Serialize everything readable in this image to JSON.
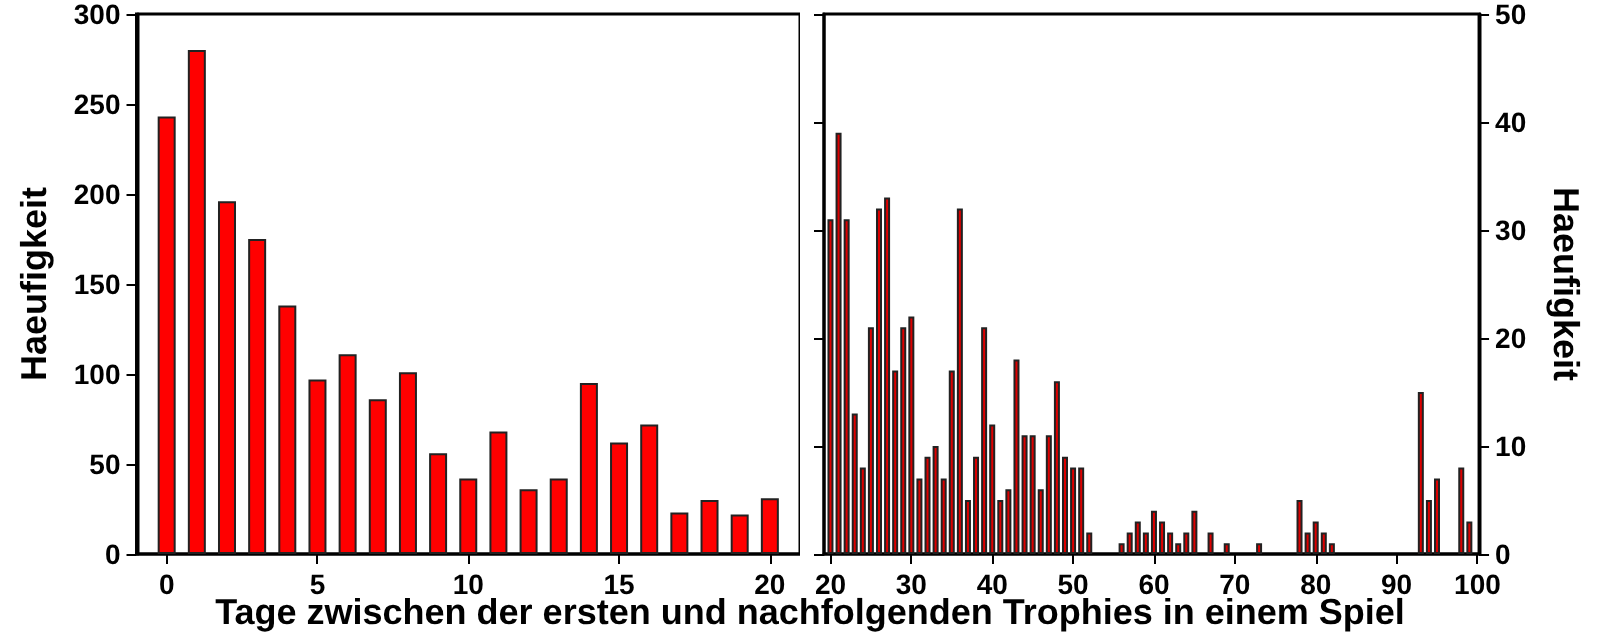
{
  "chart_data": [
    {
      "type": "bar",
      "xlabel": "Tage zwischen der ersten und nachfolgenden Trophies in einem Spiel",
      "ylabel": "Haeufigkeit",
      "x": [
        0,
        1,
        2,
        3,
        4,
        5,
        6,
        7,
        8,
        9,
        10,
        11,
        12,
        13,
        14,
        15,
        16,
        17,
        18,
        19,
        20
      ],
      "values": [
        243,
        280,
        196,
        175,
        138,
        97,
        111,
        86,
        101,
        56,
        42,
        68,
        36,
        42,
        95,
        62,
        72,
        23,
        30,
        22,
        31
      ],
      "color": "#ff0000",
      "xlim": [
        -1,
        21
      ],
      "xticks": [
        0,
        5,
        10,
        15,
        20
      ],
      "ylim": [
        0,
        300
      ],
      "yticks": [
        0,
        50,
        100,
        150,
        200,
        250,
        300
      ],
      "grid": false
    },
    {
      "type": "bar",
      "y2label": "Haeufigkeit",
      "x": [
        20,
        21,
        22,
        23,
        24,
        25,
        26,
        27,
        28,
        29,
        30,
        31,
        32,
        33,
        34,
        35,
        36,
        37,
        38,
        39,
        40,
        41,
        42,
        43,
        44,
        45,
        46,
        47,
        48,
        49,
        50,
        51,
        52,
        56,
        57,
        58,
        59,
        60,
        61,
        62,
        63,
        64,
        65,
        67,
        69,
        73,
        78,
        79,
        80,
        81,
        82,
        93,
        94,
        95,
        98,
        99
      ],
      "series": [
        {
          "color": "#dd0000",
          "axis": "y2",
          "values": [
            31,
            39,
            31,
            13,
            8,
            21,
            32,
            33,
            17,
            21,
            22,
            7,
            9,
            10,
            7,
            17,
            32,
            5,
            9,
            21,
            12,
            5,
            6,
            18,
            11,
            11,
            6,
            11,
            16,
            9,
            8,
            8,
            2,
            1,
            2,
            3,
            2,
            4,
            3,
            2,
            1,
            2,
            4,
            2,
            1,
            1,
            5,
            2,
            3,
            2,
            1,
            15,
            5,
            7,
            8,
            3
          ]
        }
      ],
      "xlim": [
        19.2,
        100.2
      ],
      "xticks": [
        20,
        30,
        40,
        50,
        60,
        70,
        80,
        90,
        100
      ],
      "y2lim": [
        0,
        50
      ],
      "y2ticks": [
        0,
        10,
        20,
        30,
        40,
        50
      ],
      "grid": false
    }
  ]
}
